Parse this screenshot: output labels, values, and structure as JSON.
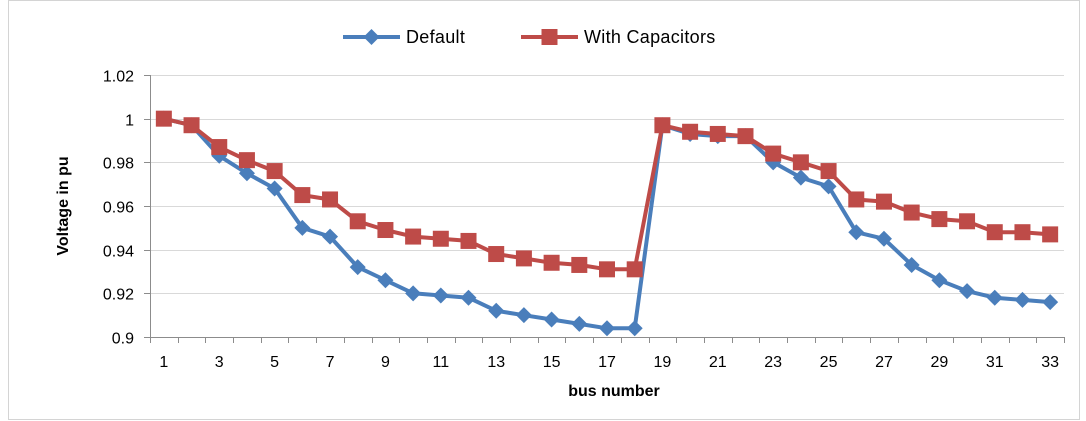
{
  "chart_data": {
    "type": "line",
    "title": "",
    "xlabel": "bus number",
    "ylabel": "Voltage in pu",
    "x_ticks": [
      1,
      3,
      5,
      7,
      9,
      11,
      13,
      15,
      17,
      19,
      21,
      23,
      25,
      27,
      29,
      31,
      33
    ],
    "x_tick_labels": [
      "1",
      "3",
      "5",
      "7",
      "9",
      "11",
      "13",
      "15",
      "17",
      "19",
      "21",
      "23",
      "25",
      "27",
      "29",
      "31",
      "33"
    ],
    "xlim": [
      0.5,
      33.5
    ],
    "ylim": [
      0.9,
      1.02
    ],
    "y_ticks": [
      0.9,
      0.92,
      0.94,
      0.96,
      0.98,
      1.0,
      1.02
    ],
    "y_tick_labels": [
      "0.9",
      "0.92",
      "0.94",
      "0.96",
      "0.98",
      "1",
      "1.02"
    ],
    "grid": "horizontal",
    "legend": "top",
    "x": [
      1,
      2,
      3,
      4,
      5,
      6,
      7,
      8,
      9,
      10,
      11,
      12,
      13,
      14,
      15,
      16,
      17,
      18,
      19,
      20,
      21,
      22,
      23,
      24,
      25,
      26,
      27,
      28,
      29,
      30,
      31,
      32,
      33
    ],
    "series": [
      {
        "name": "Default",
        "color": "#4a7ebb",
        "marker": "diamond",
        "values": [
          1.0,
          0.997,
          0.983,
          0.975,
          0.968,
          0.95,
          0.946,
          0.932,
          0.926,
          0.92,
          0.919,
          0.918,
          0.912,
          0.91,
          0.908,
          0.906,
          0.904,
          0.904,
          0.997,
          0.993,
          0.992,
          0.992,
          0.98,
          0.973,
          0.969,
          0.948,
          0.945,
          0.933,
          0.926,
          0.921,
          0.918,
          0.917,
          0.916
        ]
      },
      {
        "name": "With  Capacitors",
        "color": "#be4b48",
        "marker": "square",
        "values": [
          1.0,
          0.997,
          0.987,
          0.981,
          0.976,
          0.965,
          0.963,
          0.953,
          0.949,
          0.946,
          0.945,
          0.944,
          0.938,
          0.936,
          0.934,
          0.933,
          0.931,
          0.931,
          0.997,
          0.994,
          0.993,
          0.992,
          0.984,
          0.98,
          0.976,
          0.963,
          0.962,
          0.957,
          0.954,
          0.953,
          0.948,
          0.948,
          0.947
        ]
      }
    ]
  }
}
